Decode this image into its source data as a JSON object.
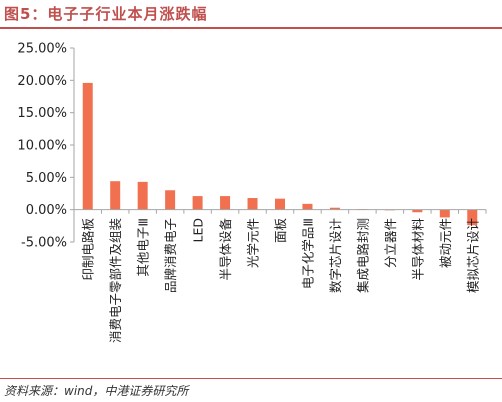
{
  "header": {
    "title": "图5：电子子行业本月涨跌幅"
  },
  "footer": {
    "source": "资料来源：wind，中港证券研究所"
  },
  "colors": {
    "bar": "#f07050",
    "axis": "#a6a6a6",
    "title": "#c0504d"
  },
  "chart_data": {
    "type": "bar",
    "categories": [
      "印制电路板",
      "消费电子零部件及组装",
      "其他电子Ⅲ",
      "品牌消费电子",
      "LED",
      "半导体设备",
      "光学元件",
      "面板",
      "电子化学品Ⅲ",
      "数字芯片设计",
      "集成电路封测",
      "分立器件",
      "半导体材料",
      "被动元件",
      "模拟芯片设计"
    ],
    "values": [
      19.6,
      4.4,
      4.3,
      3.0,
      2.1,
      2.1,
      1.8,
      1.7,
      0.9,
      0.3,
      0.1,
      -0.1,
      -0.4,
      -1.2,
      -2.4
    ],
    "yticks": [
      "25.00%",
      "20.00%",
      "15.00%",
      "10.00%",
      "5.00%",
      "0.00%",
      "-5.00%"
    ],
    "ylim": [
      -5,
      25
    ],
    "grid": false,
    "title": "",
    "xlabel": "",
    "ylabel": ""
  }
}
